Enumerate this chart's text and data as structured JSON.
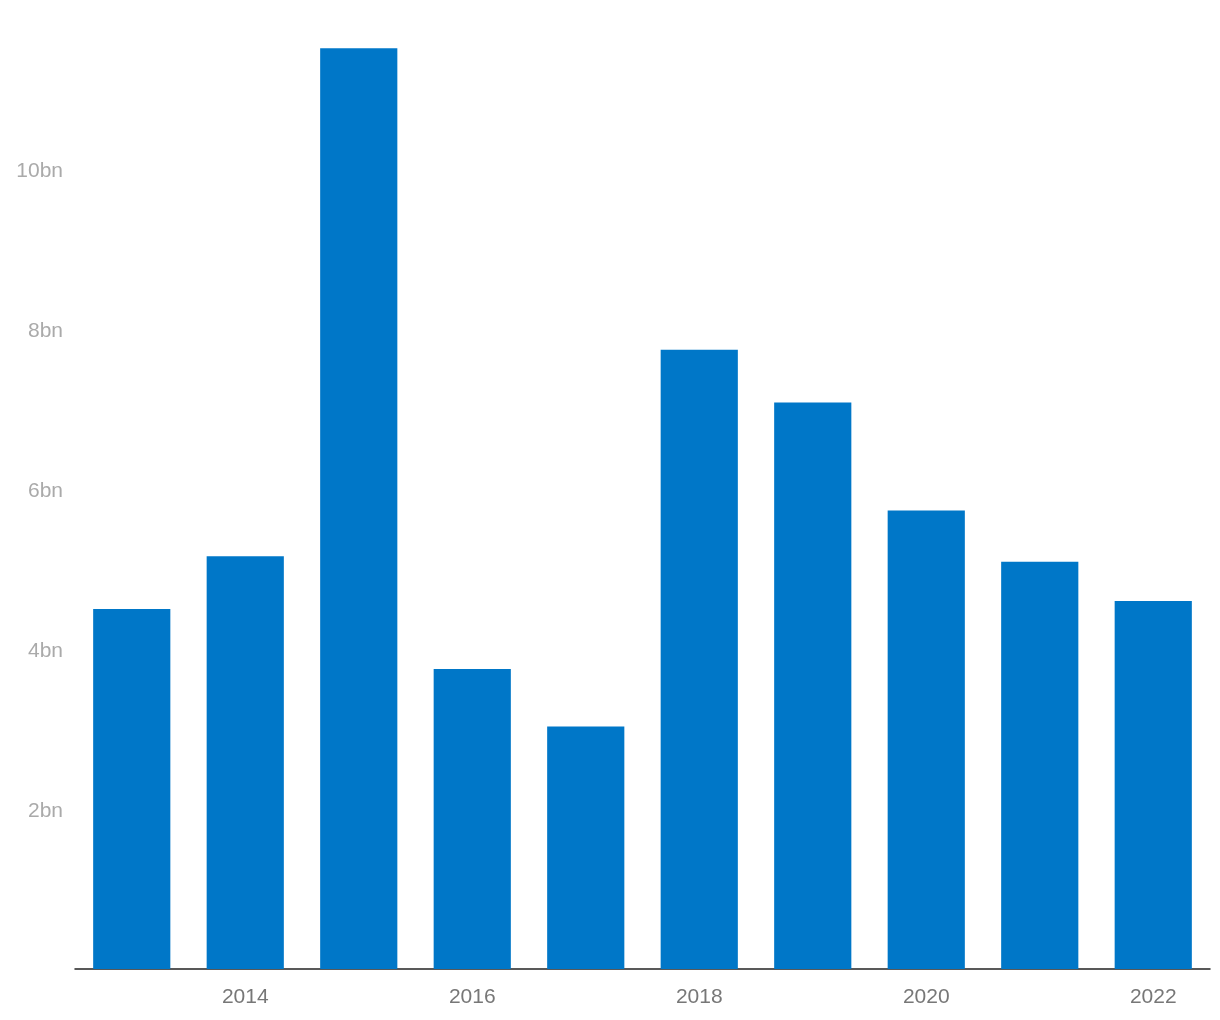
{
  "chart_data": {
    "type": "bar",
    "categories": [
      null,
      "2014",
      null,
      "2016",
      null,
      "2018",
      null,
      "2020",
      null,
      "2022"
    ],
    "values": [
      4.5,
      5.16,
      11.51,
      3.75,
      3.03,
      7.74,
      7.08,
      5.73,
      5.09,
      4.6
    ],
    "color": "#0077c8",
    "ylim": [
      0,
      11.6
    ],
    "yticks": [
      {
        "value": 2,
        "label": "2bn"
      },
      {
        "value": 4,
        "label": "4bn"
      },
      {
        "value": 6,
        "label": "6bn"
      },
      {
        "value": 8,
        "label": "8bn"
      },
      {
        "value": 10,
        "label": "10bn"
      }
    ],
    "grid": false
  }
}
